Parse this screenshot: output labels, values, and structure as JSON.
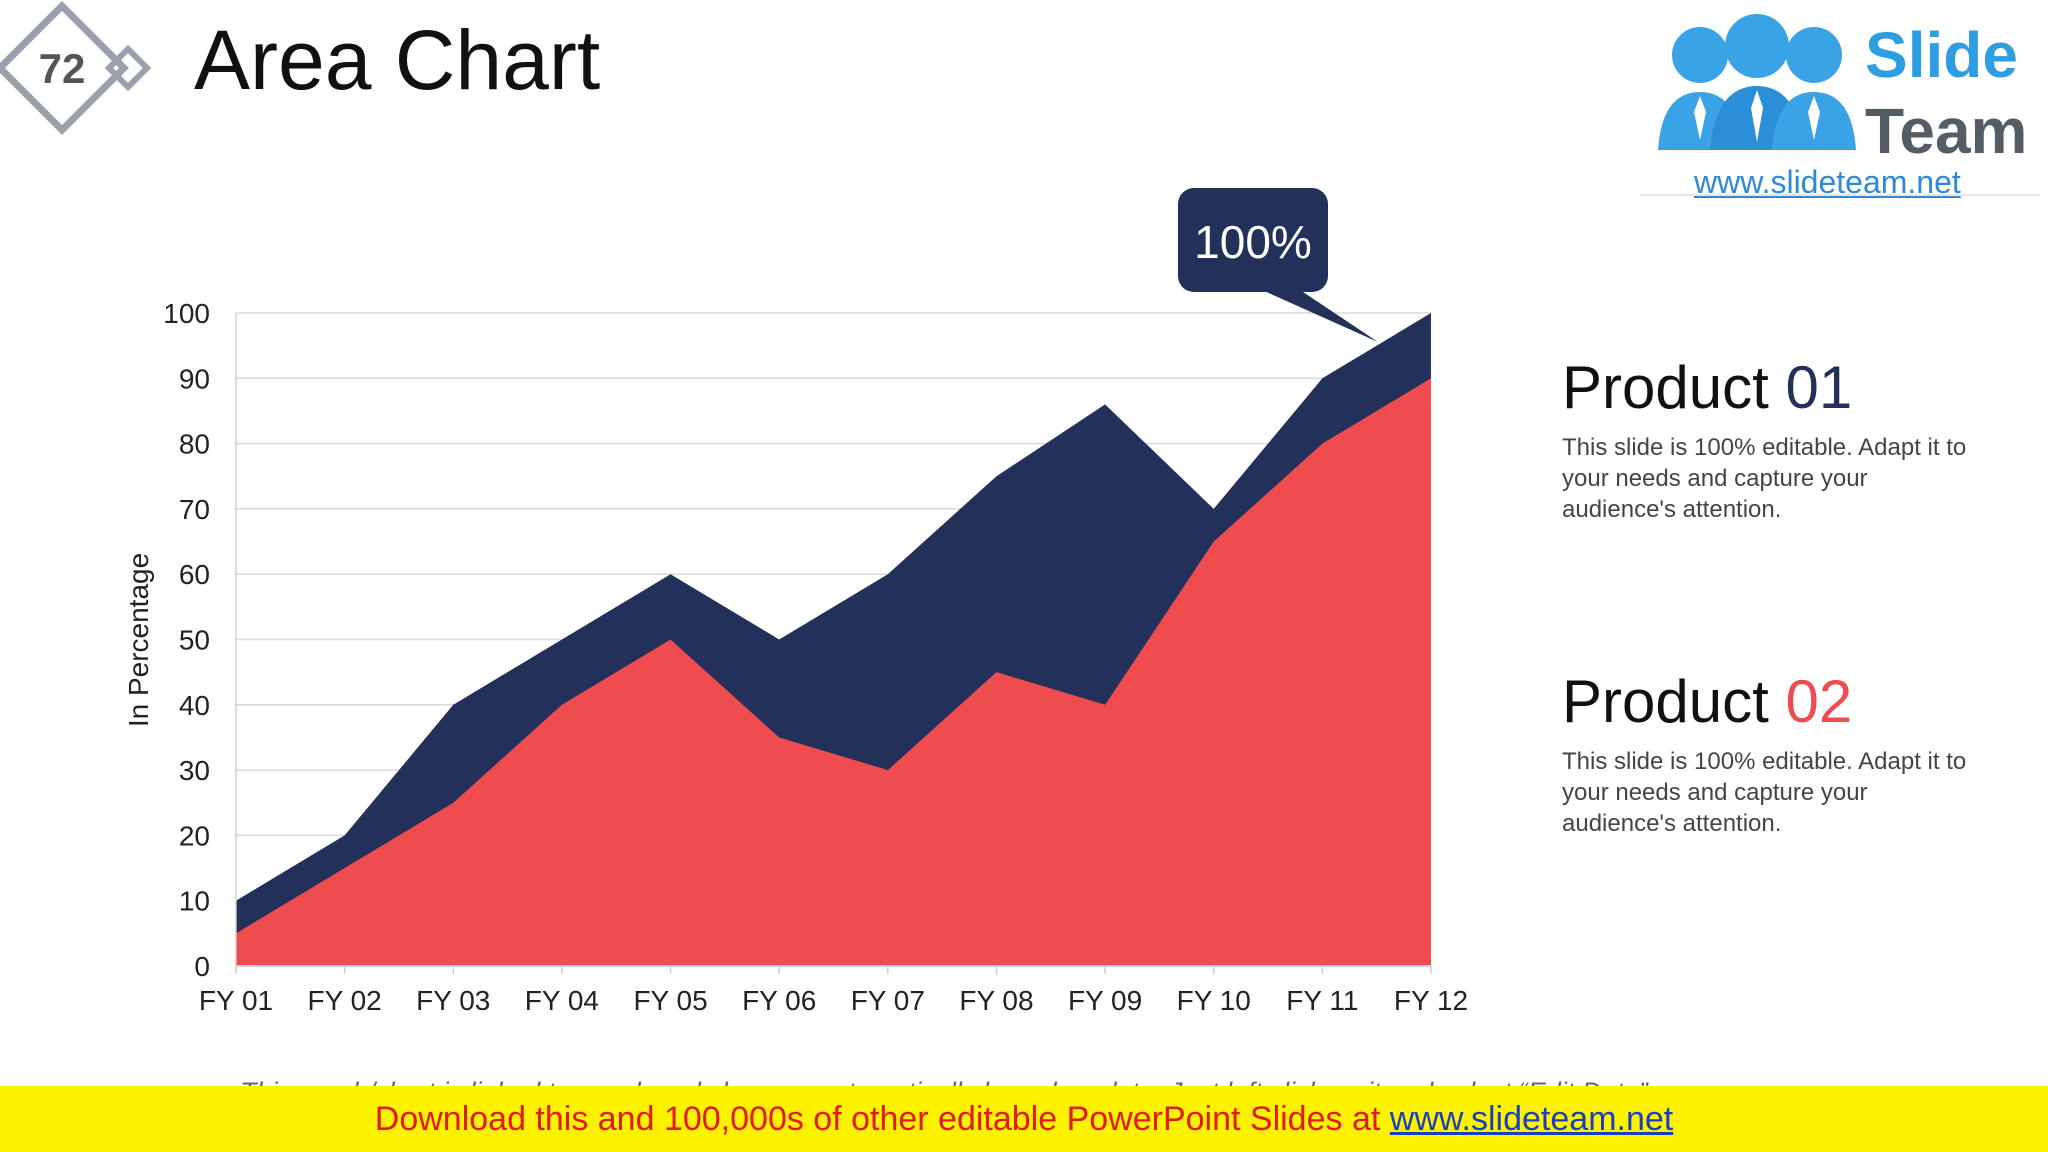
{
  "slide": {
    "number": "72",
    "title": "Area Chart",
    "accent_navy": "#23305a",
    "accent_red": "#ef4c4f"
  },
  "logo": {
    "word1": "Slide",
    "word2": "Team",
    "url": "www.slideteam.net"
  },
  "callout": {
    "label": "100%"
  },
  "products": [
    {
      "heading_word": "Product",
      "heading_number": "01",
      "color": "#23305a",
      "text": "This slide is 100% editable. Adapt it to your needs and capture your audience's attention."
    },
    {
      "heading_word": "Product",
      "heading_number": "02",
      "color": "#ef4c4f",
      "text": "This slide is 100% editable. Adapt it to your needs and capture your audience's attention."
    }
  ],
  "cut_note": "This graph/chart is linked to excel, and changes automatically based on data. Just left click on it and select “Edit Data”.",
  "footer": {
    "text": "Download this and 100,000s of other editable PowerPoint Slides at ",
    "link": "www.slideteam.net"
  },
  "chart_data": {
    "type": "area",
    "stacked": false,
    "categories": [
      "FY 01",
      "FY 02",
      "FY 03",
      "FY 04",
      "FY 05",
      "FY 06",
      "FY 07",
      "FY 08",
      "FY 09",
      "FY 10",
      "FY 11",
      "FY 12"
    ],
    "series": [
      {
        "values": [
          10,
          20,
          40,
          50,
          60,
          50,
          60,
          75,
          86,
          70,
          90,
          100
        ],
        "color": "#23305a"
      },
      {
        "values": [
          5,
          15,
          25,
          40,
          50,
          35,
          30,
          45,
          40,
          65,
          80,
          90
        ],
        "color": "#ef4c4f"
      }
    ],
    "ylabel": "In Percentage",
    "xlabel": "",
    "ylim": [
      0,
      100
    ],
    "yticks": [
      "0",
      "10",
      "20",
      "30",
      "40",
      "50",
      "60",
      "70",
      "80",
      "90",
      "100"
    ],
    "grid": true,
    "legend": "none"
  }
}
